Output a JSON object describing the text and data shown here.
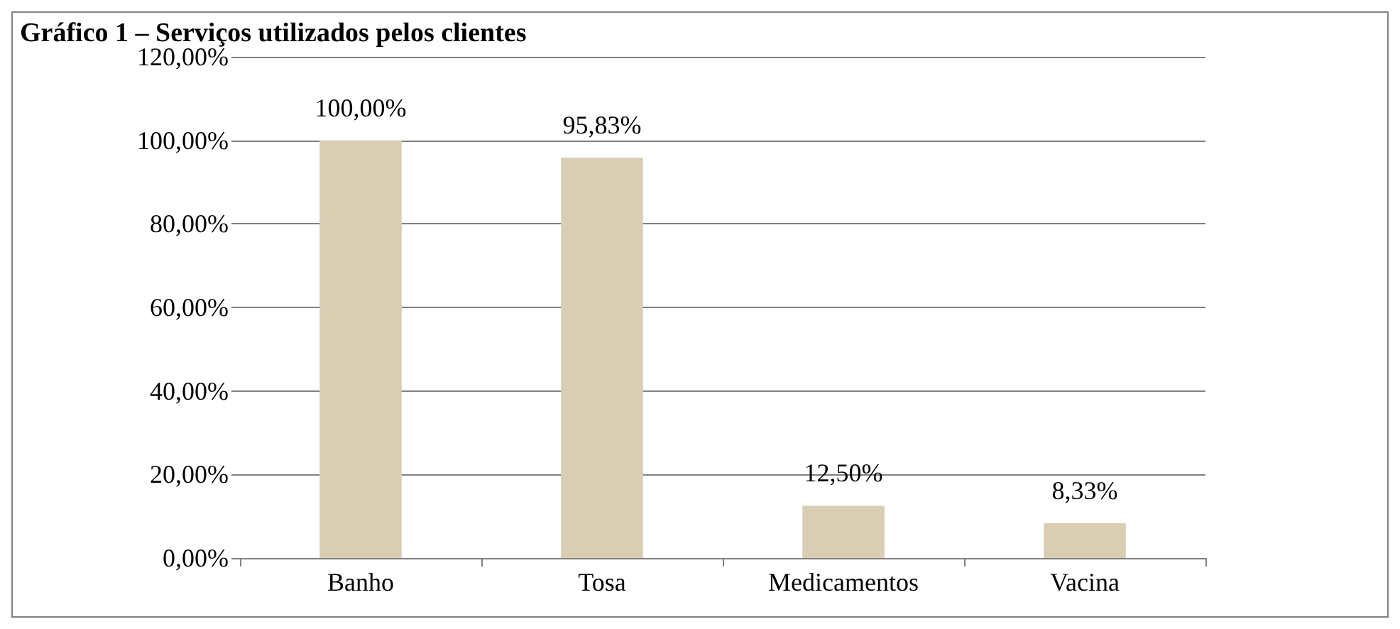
{
  "chart_data": {
    "type": "bar",
    "title": "Gráfico 1 – Serviços utilizados pelos clientes",
    "categories": [
      "Banho",
      "Tosa",
      "Medicamentos",
      "Vacina"
    ],
    "values": [
      100,
      95.83,
      12.5,
      8.33
    ],
    "value_labels": [
      "100,00%",
      "95,83%",
      "12,50%",
      "8,33%"
    ],
    "color": "#d9cdb4",
    "ylim": [
      0,
      120
    ],
    "yticks": [
      {
        "value": 0,
        "label": "0,00%"
      },
      {
        "value": 20,
        "label": "20,00%"
      },
      {
        "value": 40,
        "label": "40,00%"
      },
      {
        "value": 60,
        "label": "60,00%"
      },
      {
        "value": 80,
        "label": "80,00%"
      },
      {
        "value": 100,
        "label": "100,00%"
      },
      {
        "value": 120,
        "label": "120,00%"
      }
    ],
    "grid": "y"
  }
}
